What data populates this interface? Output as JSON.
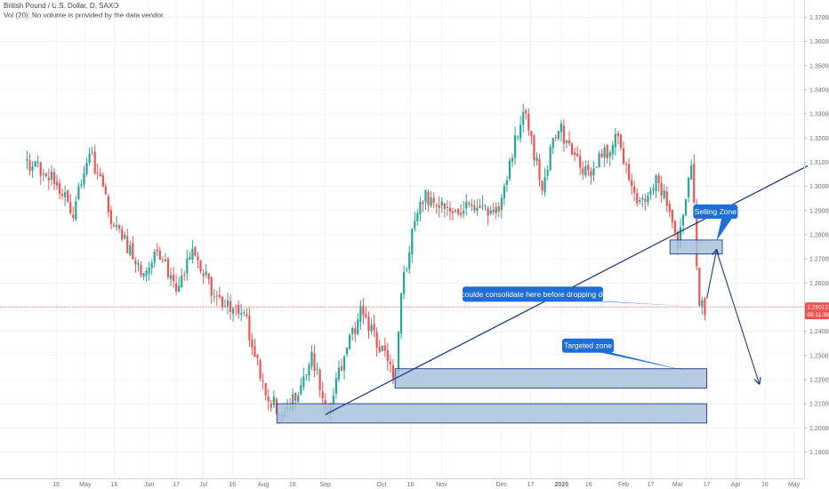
{
  "header": {
    "symbol_line": "British Pound / U.S. Dollar, D, SAXO",
    "volume_line": "Vol (20): No volume is provided by the data vendor."
  },
  "price_tag": {
    "price": "1.25012",
    "countdown": "06:11:38"
  },
  "colors": {
    "up": "#26a69a",
    "down": "#ef5350",
    "trendline": "#1c3f82",
    "zone_fill": "#a9c2dd",
    "zone_border": "#1c3f82",
    "note_bg": "#1e6ed8",
    "price_line": "#ef5350",
    "axis_text": "#6b6f78",
    "grid": "#e8ebf0"
  },
  "chart_data": {
    "type": "candlestick",
    "symbol": "GBPUSD",
    "timeframe": "D",
    "ylim": [
      1.185,
      1.372
    ],
    "y_ticks": [
      "1.37000",
      "1.36000",
      "1.35000",
      "1.34000",
      "1.33000",
      "1.32000",
      "1.31000",
      "1.30000",
      "1.29000",
      "1.28000",
      "1.27000",
      "1.26000",
      "1.25000",
      "1.24000",
      "1.23000",
      "1.22000",
      "1.21000",
      "1.20000",
      "1.19000"
    ],
    "x_labels": [
      "16",
      "May",
      "16",
      "Jun",
      "17",
      "Jul",
      "16",
      "Aug",
      "16",
      "Sep",
      "Oct",
      "16",
      "Nov",
      "Dec",
      "17",
      "2020",
      "16",
      "Feb",
      "17",
      "Mar",
      "17",
      "Apr",
      "16",
      "May",
      "Jun"
    ],
    "last_price": 1.25012,
    "price_path": [
      {
        "date": "2019-04-01",
        "close": 1.31
      },
      {
        "date": "2019-04-12",
        "close": 1.306
      },
      {
        "date": "2019-04-25",
        "close": 1.29
      },
      {
        "date": "2019-05-03",
        "close": 1.316
      },
      {
        "date": "2019-05-15",
        "close": 1.286
      },
      {
        "date": "2019-05-31",
        "close": 1.264
      },
      {
        "date": "2019-06-07",
        "close": 1.274
      },
      {
        "date": "2019-06-18",
        "close": 1.256
      },
      {
        "date": "2019-06-25",
        "close": 1.274
      },
      {
        "date": "2019-07-08",
        "close": 1.252
      },
      {
        "date": "2019-07-22",
        "close": 1.248
      },
      {
        "date": "2019-08-01",
        "close": 1.216
      },
      {
        "date": "2019-08-12",
        "close": 1.204
      },
      {
        "date": "2019-08-19",
        "close": 1.217
      },
      {
        "date": "2019-08-26",
        "close": 1.231
      },
      {
        "date": "2019-09-02",
        "close": 1.206
      },
      {
        "date": "2019-09-20",
        "close": 1.248
      },
      {
        "date": "2019-10-01",
        "close": 1.232
      },
      {
        "date": "2019-10-08",
        "close": 1.22
      },
      {
        "date": "2019-10-11",
        "close": 1.256
      },
      {
        "date": "2019-10-21",
        "close": 1.296
      },
      {
        "date": "2019-11-01",
        "close": 1.294
      },
      {
        "date": "2019-11-15",
        "close": 1.29
      },
      {
        "date": "2019-12-02",
        "close": 1.292
      },
      {
        "date": "2019-12-13",
        "close": 1.333
      },
      {
        "date": "2019-12-23",
        "close": 1.3
      },
      {
        "date": "2019-12-31",
        "close": 1.325
      },
      {
        "date": "2020-01-15",
        "close": 1.305
      },
      {
        "date": "2020-01-31",
        "close": 1.32
      },
      {
        "date": "2020-02-10",
        "close": 1.29
      },
      {
        "date": "2020-02-21",
        "close": 1.303
      },
      {
        "date": "2020-03-02",
        "close": 1.276
      },
      {
        "date": "2020-03-09",
        "close": 1.31
      },
      {
        "date": "2020-03-13",
        "close": 1.253
      },
      {
        "date": "2020-03-16",
        "close": 1.25
      }
    ],
    "annotations": [
      {
        "type": "callout",
        "text": "Selling Zone"
      },
      {
        "type": "callout",
        "text": "we coulde consolidate here before dropping down"
      },
      {
        "type": "callout",
        "text": "Targeted zone"
      },
      {
        "type": "rectangle",
        "label": "selling zone",
        "price_range": [
          1.272,
          1.2778
        ]
      },
      {
        "type": "rectangle",
        "label": "targeted zone",
        "price_range": [
          1.2165,
          1.2245
        ]
      },
      {
        "type": "rectangle",
        "label": "support zone",
        "price_range": [
          1.202,
          1.21
        ]
      },
      {
        "type": "trendline",
        "label": "rising trendline"
      },
      {
        "type": "arrow",
        "label": "projected path"
      }
    ]
  }
}
